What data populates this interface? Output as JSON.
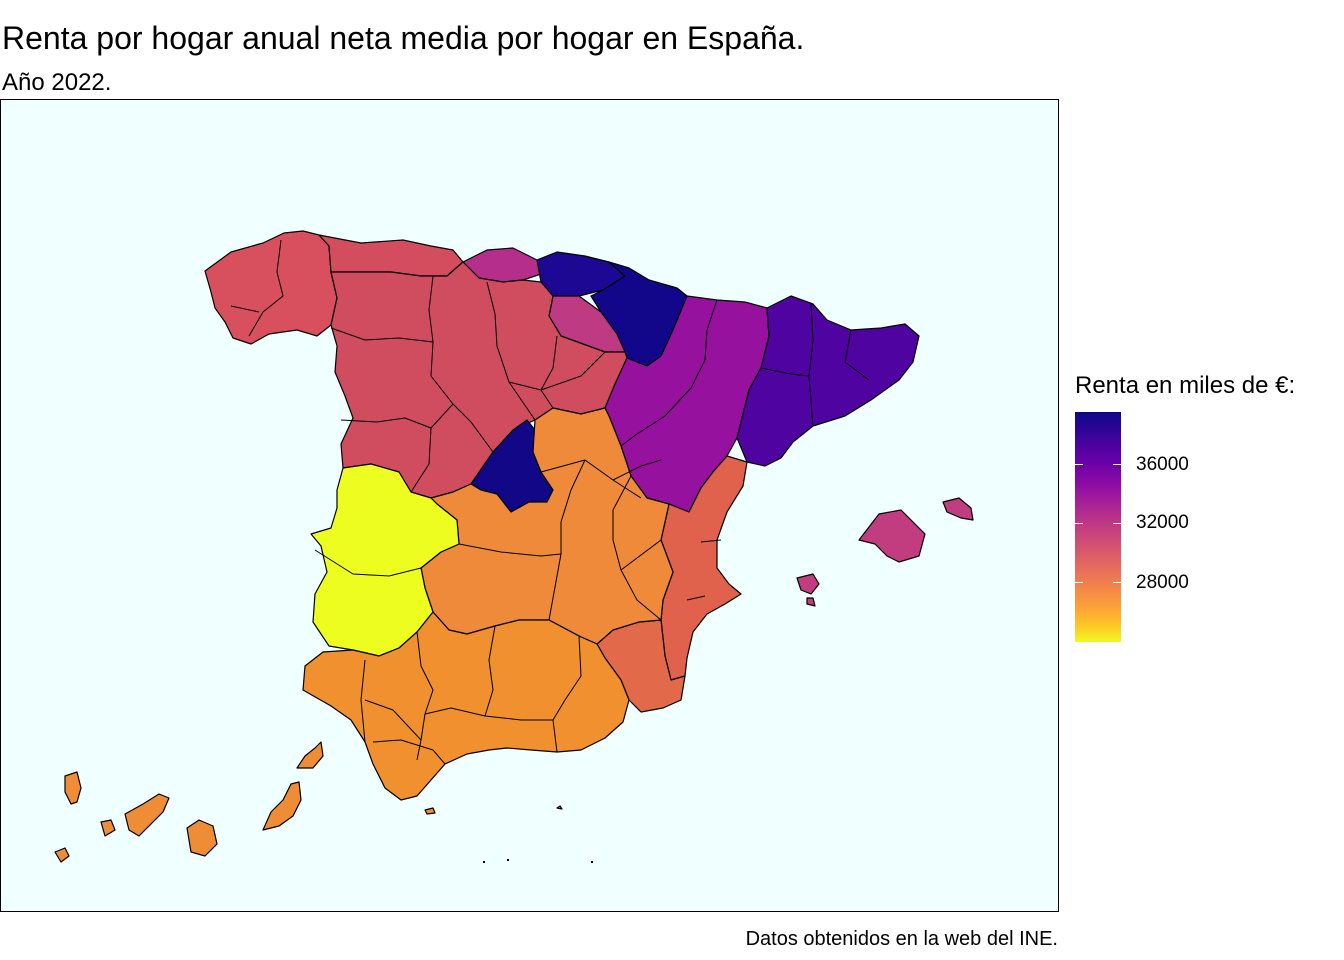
{
  "title": "Renta por hogar anual neta media por hogar en España.",
  "subtitle": "Año 2022.",
  "caption": "Datos obtenidos en la web del INE.",
  "legend": {
    "title": "Renta en miles de €:",
    "ticks": [
      "36000",
      "32000",
      "28000"
    ],
    "tick_values": [
      36000,
      32000,
      28000
    ],
    "range": [
      24500,
      39500
    ]
  },
  "colors": {
    "panel_background": "#f0ffff",
    "border": "#000000",
    "scale": [
      "#0d0887",
      "#6a00a8",
      "#b12a90",
      "#e16462",
      "#fca636",
      "#f0f921"
    ]
  },
  "map_data": {
    "type": "choropleth",
    "regions": [
      {
        "name": "Galicia",
        "value": 30500
      },
      {
        "name": "Asturias",
        "value": 31200
      },
      {
        "name": "Cantabria",
        "value": 33500
      },
      {
        "name": "País Vasco",
        "value": 39000
      },
      {
        "name": "Navarra",
        "value": 38500
      },
      {
        "name": "La Rioja",
        "value": 32500
      },
      {
        "name": "Castilla y León",
        "value": 31000
      },
      {
        "name": "Aragón",
        "value": 34500
      },
      {
        "name": "Cataluña",
        "value": 36800
      },
      {
        "name": "Madrid",
        "value": 39500
      },
      {
        "name": "Castilla-La Mancha",
        "value": 28300
      },
      {
        "name": "Extremadura",
        "value": 24500
      },
      {
        "name": "Comunitat Valenciana",
        "value": 29500
      },
      {
        "name": "Murcia",
        "value": 29300
      },
      {
        "name": "Andalucía",
        "value": 27800
      },
      {
        "name": "Illes Balears",
        "value": 32800
      },
      {
        "name": "Canarias",
        "value": 28100
      }
    ]
  }
}
